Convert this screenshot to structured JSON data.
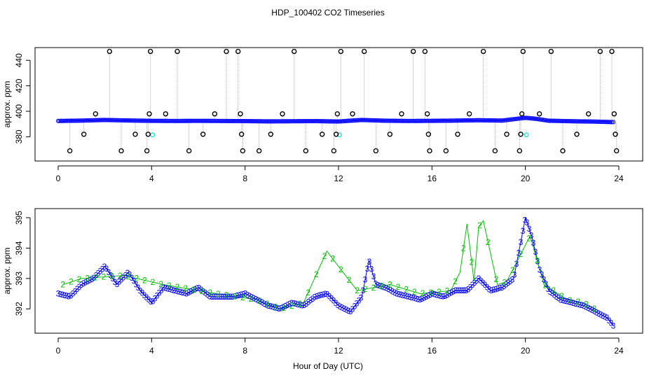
{
  "title": "HDP_100402  CO2 Timeseries",
  "xlabel": "Hour of Day (UTC)",
  "colors": {
    "main": "#0000ff",
    "secondary": "#00c000",
    "flagged": "#00e0e0",
    "outlier": "#000000",
    "spike": "#aaaaaa"
  },
  "chart_data": [
    {
      "type": "scatter",
      "ylabel": "approx. ppm",
      "xlim": [
        0,
        24
      ],
      "ylim": [
        361,
        450
      ],
      "xticks": [
        0,
        4,
        8,
        12,
        16,
        20,
        24
      ],
      "yticks": [
        360,
        380,
        400,
        420,
        440
      ],
      "series": [
        {
          "values_by_time": {
            "x": [
              0,
              1,
              2,
              3,
              4,
              5,
              6,
              7,
              8,
              9,
              10,
              11,
              12,
              13,
              14,
              15,
              16,
              17,
              18,
              19,
              20,
              20.5,
              21,
              22,
              23,
              23.8
            ],
            "y": [
              392.4,
              392.7,
              393.2,
              392.8,
              392.5,
              392.4,
              392.5,
              392.4,
              392.3,
              392.1,
              392.2,
              392.3,
              392.0,
              393.2,
              392.6,
              392.4,
              392.5,
              392.7,
              393.0,
              392.7,
              394.9,
              394.0,
              392.6,
              392.2,
              391.9,
              391.5
            ]
          }
        },
        {
          "outliers": {
            "x": [
              0.5,
              1.1,
              1.6,
              2.2,
              2.7,
              3.3,
              3.8,
              3.85,
              3.9,
              3.95,
              4.6,
              5.1,
              5.6,
              6.2,
              6.7,
              7.2,
              7.7,
              7.8,
              7.85,
              7.9,
              8.6,
              9.1,
              9.6,
              10.1,
              10.6,
              11.3,
              11.8,
              11.9,
              11.95,
              12.1,
              12.6,
              13.1,
              13.6,
              14.2,
              14.7,
              15.2,
              15.7,
              15.8,
              15.85,
              15.9,
              16.6,
              17.1,
              17.6,
              18.2,
              18.7,
              19.2,
              19.75,
              19.8,
              19.85,
              19.9,
              20.6,
              21.1,
              21.6,
              22.2,
              22.7,
              23.2,
              23.7,
              23.8,
              23.85,
              23.9
            ],
            "y": [
              369,
              382,
              398,
              447,
              369,
              382,
              369,
              382,
              398,
              447,
              398,
              447,
              369,
              382,
              398,
              447,
              447,
              398,
              382,
              369,
              369,
              382,
              398,
              447,
              369,
              382,
              369,
              382,
              398,
              447,
              398,
              447,
              369,
              382,
              398,
              447,
              447,
              398,
              382,
              369,
              369,
              382,
              398,
              447,
              369,
              382,
              369,
              382,
              398,
              447,
              398,
              447,
              369,
              382,
              398,
              447,
              447,
              398,
              382,
              369
            ]
          }
        }
      ]
    },
    {
      "type": "scatter",
      "ylabel": "approx. ppm",
      "xlim": [
        0,
        24
      ],
      "ylim": [
        391.2,
        395.3
      ],
      "xticks": [
        0,
        4,
        8,
        12,
        16,
        20,
        24
      ],
      "yticks": [
        392,
        393,
        394,
        395
      ],
      "marker_labels": [
        "2",
        "3"
      ],
      "series": [
        {
          "marker": "3",
          "x": [
            0,
            0.5,
            1,
            1.5,
            2,
            2.5,
            3,
            3.5,
            4,
            4.5,
            5,
            5.5,
            6,
            6.5,
            7,
            7.5,
            8,
            8.5,
            9,
            9.5,
            10,
            10.5,
            11,
            11.5,
            12,
            12.5,
            13,
            13.3,
            13.6,
            14,
            14.5,
            15,
            15.5,
            16,
            16.5,
            17,
            17.5,
            18,
            18.5,
            19,
            19.5,
            20,
            20.3,
            20.6,
            21,
            21.5,
            22,
            22.5,
            23,
            23.5,
            23.8
          ],
          "y": [
            392.5,
            392.4,
            392.8,
            393.0,
            393.4,
            392.8,
            393.2,
            392.6,
            392.2,
            392.7,
            392.6,
            392.5,
            392.7,
            392.4,
            392.4,
            392.4,
            392.5,
            392.3,
            392.1,
            392.0,
            392.2,
            392.1,
            392.4,
            392.5,
            392.1,
            391.9,
            392.4,
            393.6,
            392.8,
            392.7,
            392.5,
            392.4,
            392.3,
            392.5,
            392.4,
            392.6,
            392.6,
            393.0,
            392.6,
            392.7,
            393.0,
            395.0,
            394.3,
            393.3,
            392.6,
            392.3,
            392.2,
            392.1,
            391.9,
            391.7,
            391.4
          ]
        },
        {
          "marker": "2",
          "x": [
            0.2,
            1.0,
            2.8,
            4.5,
            6.8,
            8.5,
            9.5,
            10.5,
            11.5,
            12.8,
            14.2,
            15.5,
            16.8,
            17.2,
            17.5,
            17.8,
            18.0,
            18.2,
            18.8,
            19.2,
            20.2,
            20.8,
            21.8,
            22.5,
            23.2
          ],
          "y": [
            392.8,
            393.0,
            393.1,
            392.8,
            392.5,
            392.3,
            392.0,
            392.2,
            393.9,
            392.6,
            392.8,
            392.5,
            392.6,
            393.2,
            394.8,
            392.9,
            394.7,
            394.9,
            392.8,
            392.9,
            394.4,
            392.8,
            392.3,
            392.2,
            391.9
          ]
        }
      ]
    }
  ]
}
